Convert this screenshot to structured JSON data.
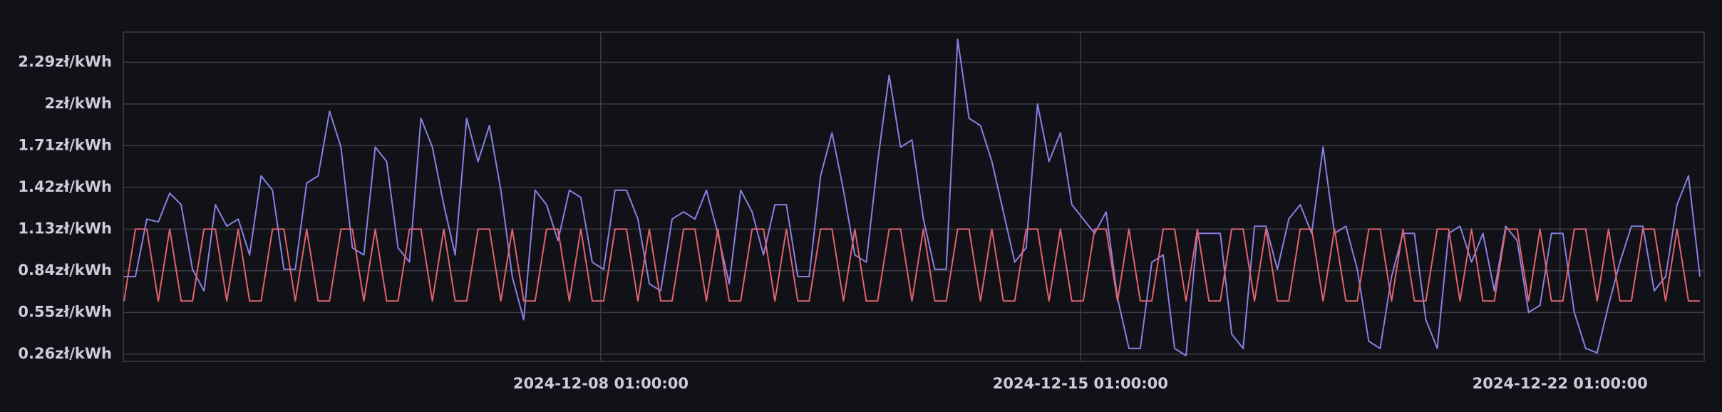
{
  "chart_data": {
    "type": "line",
    "x": [
      "2024-12-01 02:00:00",
      "2024-12-01 06:00:00",
      "2024-12-01 10:00:00",
      "2024-12-01 14:00:00",
      "2024-12-01 18:00:00",
      "2024-12-01 22:00:00",
      "2024-12-02 02:00:00",
      "2024-12-02 06:00:00",
      "2024-12-02 10:00:00",
      "2024-12-02 14:00:00",
      "2024-12-02 18:00:00",
      "2024-12-02 22:00:00",
      "2024-12-03 02:00:00",
      "2024-12-03 06:00:00",
      "2024-12-03 10:00:00",
      "2024-12-03 14:00:00",
      "2024-12-03 18:00:00",
      "2024-12-03 22:00:00",
      "2024-12-04 02:00:00",
      "2024-12-04 06:00:00",
      "2024-12-04 10:00:00",
      "2024-12-04 14:00:00",
      "2024-12-04 18:00:00",
      "2024-12-04 22:00:00",
      "2024-12-05 02:00:00",
      "2024-12-05 06:00:00",
      "2024-12-05 10:00:00",
      "2024-12-05 14:00:00",
      "2024-12-05 18:00:00",
      "2024-12-05 22:00:00",
      "2024-12-06 02:00:00",
      "2024-12-06 06:00:00",
      "2024-12-06 10:00:00",
      "2024-12-06 14:00:00",
      "2024-12-06 18:00:00",
      "2024-12-06 22:00:00",
      "2024-12-07 02:00:00",
      "2024-12-07 06:00:00",
      "2024-12-07 10:00:00",
      "2024-12-07 14:00:00",
      "2024-12-07 18:00:00",
      "2024-12-07 22:00:00",
      "2024-12-08 02:00:00",
      "2024-12-08 06:00:00",
      "2024-12-08 10:00:00",
      "2024-12-08 14:00:00",
      "2024-12-08 18:00:00",
      "2024-12-08 22:00:00",
      "2024-12-09 02:00:00",
      "2024-12-09 06:00:00",
      "2024-12-09 10:00:00",
      "2024-12-09 14:00:00",
      "2024-12-09 18:00:00",
      "2024-12-09 22:00:00",
      "2024-12-10 02:00:00",
      "2024-12-10 06:00:00",
      "2024-12-10 10:00:00",
      "2024-12-10 14:00:00",
      "2024-12-10 18:00:00",
      "2024-12-10 22:00:00",
      "2024-12-11 02:00:00",
      "2024-12-11 06:00:00",
      "2024-12-11 10:00:00",
      "2024-12-11 14:00:00",
      "2024-12-11 18:00:00",
      "2024-12-11 22:00:00",
      "2024-12-12 02:00:00",
      "2024-12-12 06:00:00",
      "2024-12-12 10:00:00",
      "2024-12-12 14:00:00",
      "2024-12-12 18:00:00",
      "2024-12-12 22:00:00",
      "2024-12-13 02:00:00",
      "2024-12-13 06:00:00",
      "2024-12-13 10:00:00",
      "2024-12-13 14:00:00",
      "2024-12-13 18:00:00",
      "2024-12-13 22:00:00",
      "2024-12-14 02:00:00",
      "2024-12-14 06:00:00",
      "2024-12-14 10:00:00",
      "2024-12-14 14:00:00",
      "2024-12-14 18:00:00",
      "2024-12-14 22:00:00",
      "2024-12-15 02:00:00",
      "2024-12-15 06:00:00",
      "2024-12-15 10:00:00",
      "2024-12-15 14:00:00",
      "2024-12-15 18:00:00",
      "2024-12-15 22:00:00",
      "2024-12-16 02:00:00",
      "2024-12-16 06:00:00",
      "2024-12-16 10:00:00",
      "2024-12-16 14:00:00",
      "2024-12-16 18:00:00",
      "2024-12-16 22:00:00",
      "2024-12-17 02:00:00",
      "2024-12-17 06:00:00",
      "2024-12-17 10:00:00",
      "2024-12-17 14:00:00",
      "2024-12-17 18:00:00",
      "2024-12-17 22:00:00",
      "2024-12-18 02:00:00",
      "2024-12-18 06:00:00",
      "2024-12-18 10:00:00",
      "2024-12-18 14:00:00",
      "2024-12-18 18:00:00",
      "2024-12-18 22:00:00",
      "2024-12-19 02:00:00",
      "2024-12-19 06:00:00",
      "2024-12-19 10:00:00",
      "2024-12-19 14:00:00",
      "2024-12-19 18:00:00",
      "2024-12-19 22:00:00",
      "2024-12-20 02:00:00",
      "2024-12-20 06:00:00",
      "2024-12-20 10:00:00",
      "2024-12-20 14:00:00",
      "2024-12-20 18:00:00",
      "2024-12-20 22:00:00",
      "2024-12-21 02:00:00",
      "2024-12-21 06:00:00",
      "2024-12-21 10:00:00",
      "2024-12-21 14:00:00",
      "2024-12-21 18:00:00",
      "2024-12-21 22:00:00",
      "2024-12-22 02:00:00",
      "2024-12-22 06:00:00",
      "2024-12-22 10:00:00",
      "2024-12-22 14:00:00",
      "2024-12-22 18:00:00",
      "2024-12-22 22:00:00",
      "2024-12-23 02:00:00",
      "2024-12-23 06:00:00",
      "2024-12-23 10:00:00",
      "2024-12-23 14:00:00",
      "2024-12-23 18:00:00",
      "2024-12-23 22:00:00",
      "2024-12-24 02:00:00"
    ],
    "series": [
      {
        "color": "#8a7fe3",
        "values": [
          0.8,
          0.8,
          1.2,
          1.18,
          1.38,
          1.3,
          0.85,
          0.7,
          1.3,
          1.15,
          1.2,
          0.95,
          1.5,
          1.4,
          0.85,
          0.85,
          1.45,
          1.5,
          1.95,
          1.7,
          1.0,
          0.95,
          1.7,
          1.6,
          1.0,
          0.9,
          1.9,
          1.7,
          1.3,
          0.95,
          1.9,
          1.6,
          1.85,
          1.4,
          0.8,
          0.5,
          1.4,
          1.3,
          1.05,
          1.4,
          1.35,
          0.9,
          0.85,
          1.4,
          1.4,
          1.2,
          0.75,
          0.7,
          1.2,
          1.25,
          1.2,
          1.4,
          1.1,
          0.75,
          1.4,
          1.25,
          0.95,
          1.3,
          1.3,
          0.8,
          0.8,
          1.5,
          1.8,
          1.4,
          0.95,
          0.9,
          1.6,
          2.2,
          1.7,
          1.75,
          1.2,
          0.85,
          0.85,
          2.45,
          1.9,
          1.85,
          1.6,
          1.25,
          0.9,
          1.0,
          2.0,
          1.6,
          1.8,
          1.3,
          1.2,
          1.1,
          1.25,
          0.65,
          0.3,
          0.3,
          0.9,
          0.95,
          0.3,
          0.25,
          1.1,
          1.1,
          1.1,
          0.4,
          0.3,
          1.15,
          1.15,
          0.85,
          1.2,
          1.3,
          1.1,
          1.7,
          1.1,
          1.15,
          0.85,
          0.35,
          0.3,
          0.8,
          1.1,
          1.1,
          0.5,
          0.3,
          1.1,
          1.15,
          0.9,
          1.1,
          0.7,
          1.15,
          1.05,
          0.55,
          0.6,
          1.1,
          1.1,
          0.55,
          0.3,
          0.27,
          0.6,
          0.9,
          1.15,
          1.15,
          0.7,
          0.8,
          1.3,
          1.5,
          0.8
        ]
      },
      {
        "color": "#e0636d",
        "values": [
          0.63,
          1.13,
          1.13,
          0.63,
          1.13,
          0.63,
          0.63,
          1.13,
          1.13,
          0.63,
          1.13,
          0.63,
          0.63,
          1.13,
          1.13,
          0.63,
          1.13,
          0.63,
          0.63,
          1.13,
          1.13,
          0.63,
          1.13,
          0.63,
          0.63,
          1.13,
          1.13,
          0.63,
          1.13,
          0.63,
          0.63,
          1.13,
          1.13,
          0.63,
          1.13,
          0.63,
          0.63,
          1.13,
          1.13,
          0.63,
          1.13,
          0.63,
          0.63,
          1.13,
          1.13,
          0.63,
          1.13,
          0.63,
          0.63,
          1.13,
          1.13,
          0.63,
          1.13,
          0.63,
          0.63,
          1.13,
          1.13,
          0.63,
          1.13,
          0.63,
          0.63,
          1.13,
          1.13,
          0.63,
          1.13,
          0.63,
          0.63,
          1.13,
          1.13,
          0.63,
          1.13,
          0.63,
          0.63,
          1.13,
          1.13,
          0.63,
          1.13,
          0.63,
          0.63,
          1.13,
          1.13,
          0.63,
          1.13,
          0.63,
          0.63,
          1.13,
          1.13,
          0.63,
          1.13,
          0.63,
          0.63,
          1.13,
          1.13,
          0.63,
          1.13,
          0.63,
          0.63,
          1.13,
          1.13,
          0.63,
          1.13,
          0.63,
          0.63,
          1.13,
          1.13,
          0.63,
          1.13,
          0.63,
          0.63,
          1.13,
          1.13,
          0.63,
          1.13,
          0.63,
          0.63,
          1.13,
          1.13,
          0.63,
          1.13,
          0.63,
          0.63,
          1.13,
          1.13,
          0.63,
          1.13,
          0.63,
          0.63,
          1.13,
          1.13,
          0.63,
          1.13,
          0.63,
          0.63,
          1.13,
          1.13,
          0.63,
          1.13,
          0.63,
          0.63
        ]
      }
    ],
    "xlim": [
      "2024-12-01 01:45:00",
      "2024-12-24 03:30:00"
    ],
    "xticks": [
      "2024-12-08 01:00:00",
      "2024-12-15 01:00:00",
      "2024-12-22 01:00:00"
    ],
    "ylim": [
      0.21,
      2.5
    ],
    "yticks": [
      {
        "value": 0.26,
        "label": "0.26zł/kWh"
      },
      {
        "value": 0.55,
        "label": "0.55zł/kWh"
      },
      {
        "value": 0.84,
        "label": "0.84zł/kWh"
      },
      {
        "value": 1.13,
        "label": "1.13zł/kWh"
      },
      {
        "value": 1.42,
        "label": "1.42zł/kWh"
      },
      {
        "value": 1.71,
        "label": "1.71zł/kWh"
      },
      {
        "value": 2,
        "label": "2zł/kWh"
      },
      {
        "value": 2.29,
        "label": "2.29zł/kWh"
      }
    ],
    "grid": true
  }
}
